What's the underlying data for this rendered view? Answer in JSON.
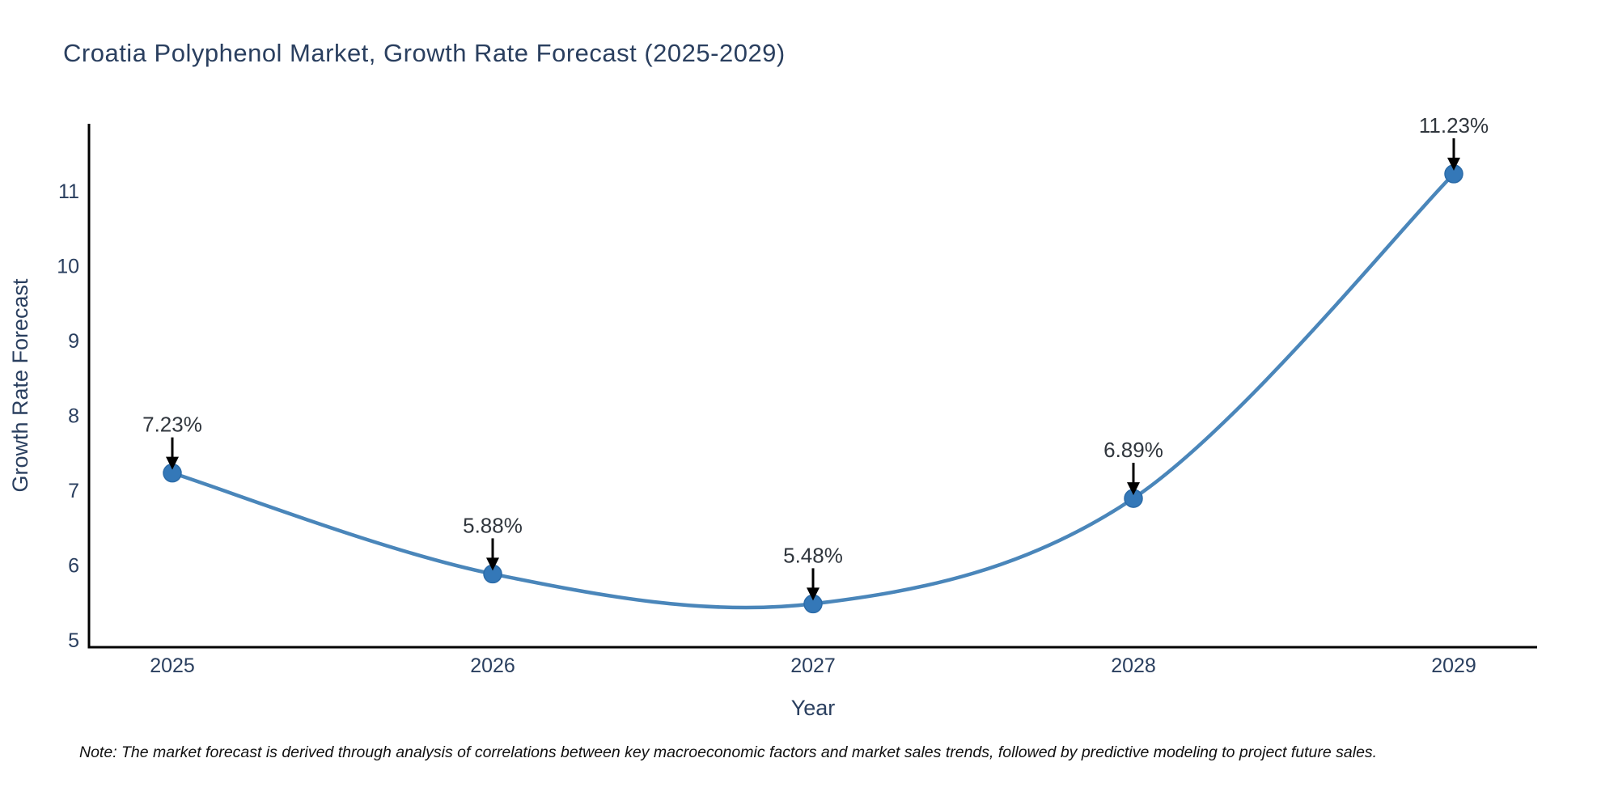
{
  "title": "Croatia Polyphenol Market, Growth Rate Forecast (2025-2029)",
  "note": "Note: The market forecast is derived through analysis of correlations between key macroeconomic factors and market sales trends, followed by predictive modeling to project future sales.",
  "chart_data": {
    "type": "line",
    "line_shape": "spline",
    "title": "Croatia Polyphenol Market, Growth Rate Forecast (2025-2029)",
    "categories": [
      "2025",
      "2026",
      "2027",
      "2028",
      "2029"
    ],
    "values": [
      7.23,
      5.88,
      5.48,
      6.89,
      11.23
    ],
    "point_labels": [
      "7.23%",
      "5.88%",
      "5.48%",
      "6.89%",
      "11.23%"
    ],
    "xlabel": "Year",
    "ylabel": "Growth Rate Forecast",
    "yticks": [
      5,
      6,
      7,
      8,
      9,
      10,
      11
    ],
    "ylim": [
      4.9,
      11.9
    ],
    "grid": false,
    "legend": "none",
    "annotation_style": "down-arrow",
    "colors": {
      "line": "#4a86ba",
      "marker_fill": "#3478b8",
      "marker_edge": "#2b6ba8",
      "axis_line": "#000000",
      "tick_text": "#2a3f5f",
      "axis_title_text": "#2a3f5f",
      "annotation_text": "#30363d",
      "arrow": "#000000",
      "title_text": "#2a3f5f",
      "note_text": "#111111"
    }
  }
}
